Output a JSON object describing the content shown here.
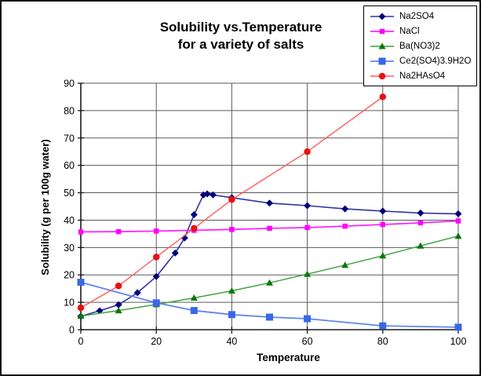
{
  "chart": {
    "title_line1": "Solubility vs.Temperature",
    "title_line2": "for a variety of salts",
    "xlabel": "Temperature",
    "ylabel": "Solubility (g per 100g water)"
  },
  "chart_data": {
    "type": "line",
    "title": "Solubility vs.Temperature for a variety of salts",
    "xlabel": "Temperature",
    "ylabel": "Solubility (g per 100g water)",
    "xlim": [
      0,
      100
    ],
    "ylim": [
      0,
      90
    ],
    "x_ticks": [
      0,
      20,
      40,
      60,
      80,
      100
    ],
    "y_ticks": [
      0,
      10,
      20,
      30,
      40,
      50,
      60,
      70,
      80,
      90
    ],
    "grid": true,
    "legend_position": "top-right",
    "style": {
      "grid_color": "#5a5a5a",
      "axis_color": "#1a1a1a",
      "background": "#ffffff"
    },
    "series": [
      {
        "name": "Na2SO4",
        "marker": "diamond",
        "line_color": "#3333a3",
        "marker_color": "#00007d",
        "marker_size": 7,
        "line_width": 1.6,
        "points": [
          [
            0,
            4.9
          ],
          [
            5,
            6.9
          ],
          [
            10,
            9.1
          ],
          [
            15,
            13.5
          ],
          [
            20,
            19.4
          ],
          [
            25,
            28.0
          ],
          [
            27.5,
            33.5
          ],
          [
            30,
            42.0
          ],
          [
            32.5,
            49.2
          ],
          [
            33.5,
            49.6
          ],
          [
            35,
            49.2
          ],
          [
            40,
            48.2
          ],
          [
            50,
            46.2
          ],
          [
            60,
            45.3
          ],
          [
            70,
            44.1
          ],
          [
            80,
            43.3
          ],
          [
            90,
            42.6
          ],
          [
            100,
            42.3
          ]
        ]
      },
      {
        "name": "NaCl",
        "marker": "square",
        "line_color": "#ff22ff",
        "marker_color": "#ff00ff",
        "marker_size": 6.5,
        "line_width": 1.8,
        "points": [
          [
            0,
            35.7
          ],
          [
            10,
            35.8
          ],
          [
            20,
            36.0
          ],
          [
            30,
            36.3
          ],
          [
            40,
            36.6
          ],
          [
            50,
            37.0
          ],
          [
            60,
            37.3
          ],
          [
            70,
            37.8
          ],
          [
            80,
            38.4
          ],
          [
            90,
            39.0
          ],
          [
            100,
            39.7
          ]
        ]
      },
      {
        "name": "Ba(NO3)2",
        "marker": "triangle",
        "line_color": "#3fa33f",
        "marker_color": "#067806",
        "marker_size": 8,
        "line_width": 1.5,
        "points": [
          [
            0,
            5.0
          ],
          [
            10,
            7.0
          ],
          [
            20,
            9.2
          ],
          [
            30,
            11.6
          ],
          [
            40,
            14.2
          ],
          [
            50,
            17.1
          ],
          [
            60,
            20.3
          ],
          [
            70,
            23.6
          ],
          [
            80,
            27.0
          ],
          [
            90,
            30.6
          ],
          [
            100,
            34.2
          ]
        ]
      },
      {
        "name": "Ce2(SO4)3.9H2O",
        "marker": "square",
        "line_color": "#5e85f0",
        "marker_color": "#3968e6",
        "marker_size": 9,
        "line_width": 1.8,
        "points": [
          [
            0,
            17.3
          ],
          [
            20,
            9.8
          ],
          [
            30,
            7.0
          ],
          [
            40,
            5.5
          ],
          [
            50,
            4.6
          ],
          [
            60,
            4.0
          ],
          [
            80,
            1.4
          ],
          [
            100,
            0.9
          ]
        ]
      },
      {
        "name": "Na2HAsO4",
        "marker": "circle",
        "line_color": "#ff5a5a",
        "marker_color": "#e81111",
        "marker_size": 8.5,
        "line_width": 1.4,
        "points": [
          [
            0,
            8.0
          ],
          [
            10,
            16.0
          ],
          [
            20,
            26.5
          ],
          [
            30,
            37.0
          ],
          [
            40,
            47.5
          ],
          [
            60,
            65.0
          ],
          [
            80,
            85.0
          ]
        ]
      }
    ]
  }
}
